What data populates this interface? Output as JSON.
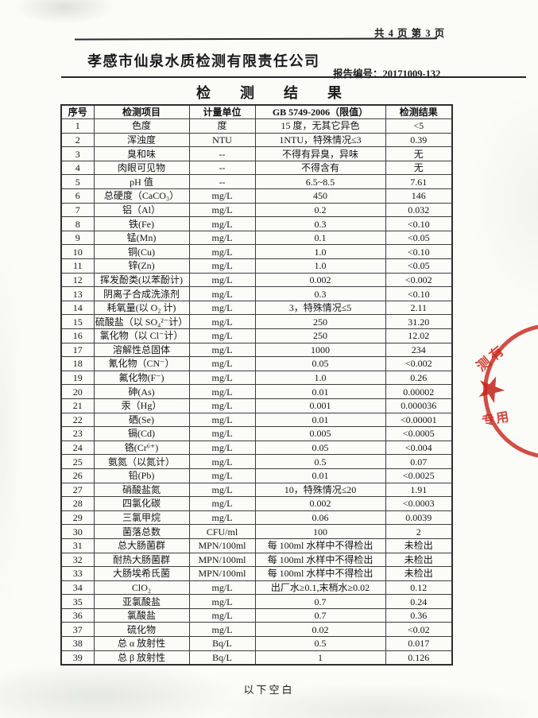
{
  "page": {
    "page_indicator": "共 4 页  第 3 页",
    "company_name": "孝感市仙泉水质检测有限责任公司",
    "report_no_line": "报告编号：20171009-132",
    "title": "检 测 结 果",
    "footer_note": "以下空白"
  },
  "table": {
    "headers": [
      "序号",
      "检测项目",
      "计量单位",
      "GB 5749-2006（限值）",
      "检测结果"
    ],
    "rows": [
      [
        "1",
        "色度",
        "度",
        "15 度，无其它异色",
        "<5"
      ],
      [
        "2",
        "浑浊度",
        "NTU",
        "1NTU，特殊情况≤3",
        "0.39"
      ],
      [
        "3",
        "臭和味",
        "--",
        "不得有异臭，异味",
        "无"
      ],
      [
        "4",
        "肉眼可见物",
        "--",
        "不得含有",
        "无"
      ],
      [
        "5",
        "pH 值",
        "--",
        "6.5~8.5",
        "7.61"
      ],
      [
        "6",
        "总硬度（CaCO₃）",
        "mg/L",
        "450",
        "146"
      ],
      [
        "7",
        "铝（Al）",
        "mg/L",
        "0.2",
        "0.032"
      ],
      [
        "8",
        "铁(Fe)",
        "mg/L",
        "0.3",
        "<0.10"
      ],
      [
        "9",
        "锰(Mn)",
        "mg/L",
        "0.1",
        "<0.05"
      ],
      [
        "10",
        "铜(Cu)",
        "mg/L",
        "1.0",
        "<0.10"
      ],
      [
        "11",
        "锌(Zn)",
        "mg/L",
        "1.0",
        "<0.05"
      ],
      [
        "12",
        "挥发酚类(以苯酚计)",
        "mg/L",
        "0.002",
        "<0.002"
      ],
      [
        "13",
        "阴离子合成洗涤剂",
        "mg/L",
        "0.3",
        "<0.10"
      ],
      [
        "14",
        "耗氧量(以 O₂ 计)",
        "mg/L",
        "3，特殊情况≤5",
        "2.11"
      ],
      [
        "15",
        "硫酸盐（以 SO₄²⁻计）",
        "mg/L",
        "250",
        "31.20"
      ],
      [
        "16",
        "氯化物（以 Cl⁻计）",
        "mg/L",
        "250",
        "12.02"
      ],
      [
        "17",
        "溶解性总固体",
        "mg/L",
        "1000",
        "234"
      ],
      [
        "18",
        "氰化物（CN⁻）",
        "mg/L",
        "0.05",
        "<0.002"
      ],
      [
        "19",
        "氟化物(F⁻)",
        "mg/L",
        "1.0",
        "0.26"
      ],
      [
        "20",
        "砷(As)",
        "mg/L",
        "0.01",
        "0.00002"
      ],
      [
        "21",
        "汞（Hg）",
        "mg/L",
        "0.001",
        "0.000036"
      ],
      [
        "22",
        "硒(Se)",
        "mg/L",
        "0.01",
        "<0.00001"
      ],
      [
        "23",
        "镉(Cd)",
        "mg/L",
        "0.005",
        "<0.0005"
      ],
      [
        "24",
        "铬(Cr⁶⁺)",
        "mg/L",
        "0.05",
        "<0.004"
      ],
      [
        "25",
        "氨氮（以氮计）",
        "mg/L",
        "0.5",
        "0.07"
      ],
      [
        "26",
        "铅(Pb)",
        "mg/L",
        "0.01",
        "<0.0025"
      ],
      [
        "27",
        "硝酸盐氮",
        "mg/L",
        "10，特殊情况≤20",
        "1.91"
      ],
      [
        "28",
        "四氯化碳",
        "mg/L",
        "0.002",
        "<0.0003"
      ],
      [
        "29",
        "三氯甲烷",
        "mg/L",
        "0.06",
        "0.0039"
      ],
      [
        "30",
        "菌落总数",
        "CFU/ml",
        "100",
        "2"
      ],
      [
        "31",
        "总大肠菌群",
        "MPN/100ml",
        "每 100ml 水样中不得检出",
        "未检出"
      ],
      [
        "32",
        "耐热大肠菌群",
        "MPN/100ml",
        "每 100ml 水样中不得检出",
        "未检出"
      ],
      [
        "33",
        "大肠埃希氏菌",
        "MPN/100ml",
        "每 100ml 水样中不得检出",
        "未检出"
      ],
      [
        "34",
        "ClO₂",
        "mg/L",
        "出厂水≥0.1,末梢水≥0.02",
        "0.12"
      ],
      [
        "35",
        "亚氯酸盐",
        "mg/L",
        "0.7",
        "0.24"
      ],
      [
        "36",
        "氯酸盐",
        "mg/L",
        "0.7",
        "0.36"
      ],
      [
        "37",
        "硫化物",
        "mg/L",
        "0.02",
        "<0.02"
      ],
      [
        "38",
        "总 α 放射性",
        "Bq/L",
        "0.5",
        "0.017"
      ],
      [
        "39",
        "总 β 放射性",
        "Bq/L",
        "1",
        "0.126"
      ]
    ]
  },
  "stamp": {
    "color": "#c6281c",
    "star_glyph": "★",
    "text_top": "测有",
    "text_bottom": "专用"
  }
}
